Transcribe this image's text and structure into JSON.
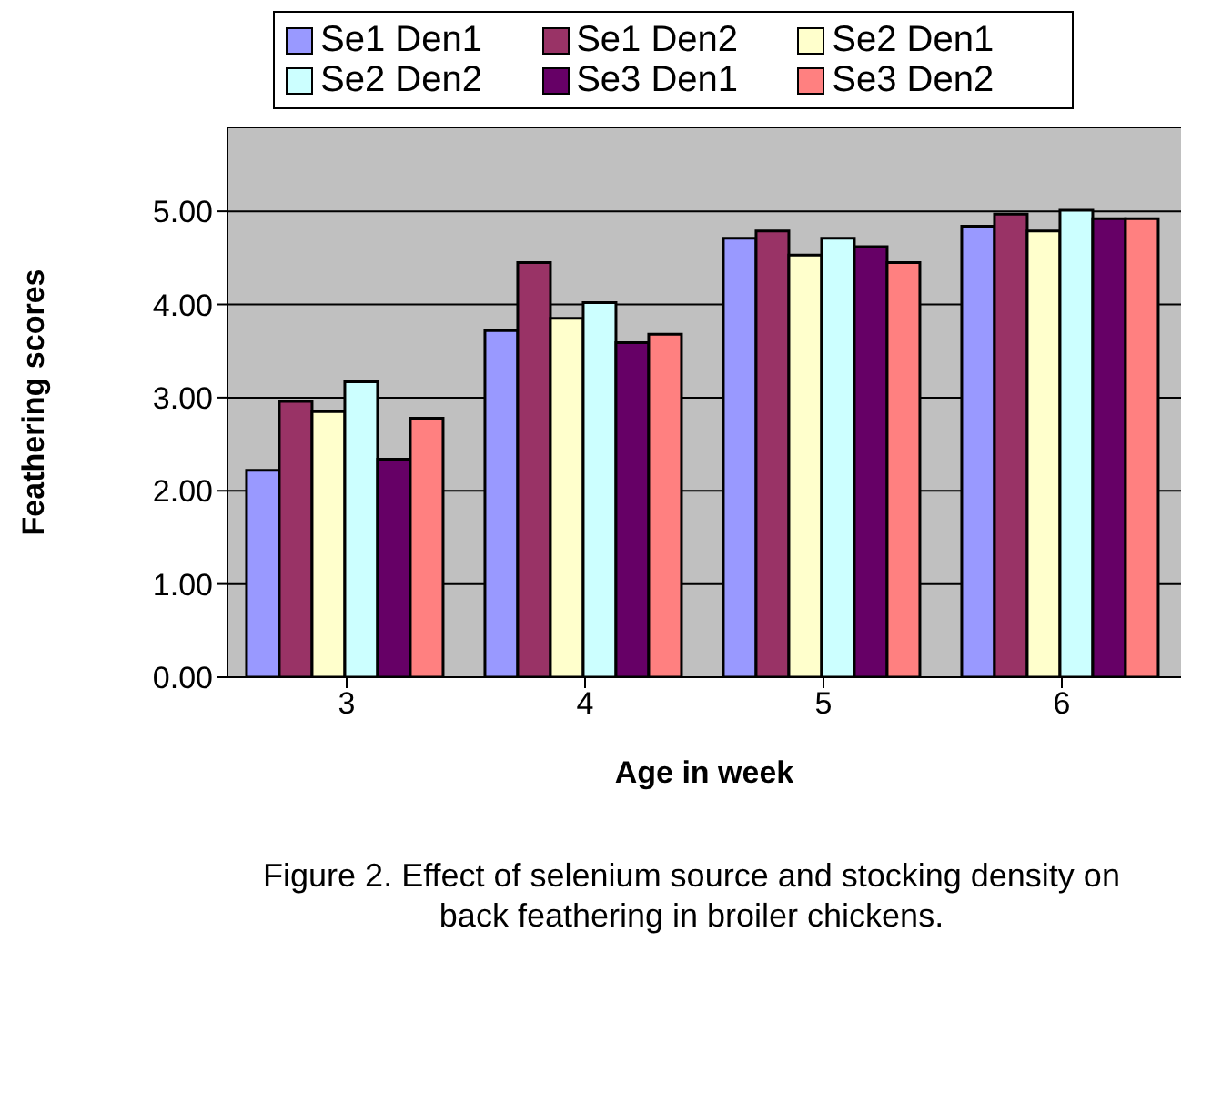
{
  "chart_data": {
    "type": "bar",
    "xlabel": "Age in week",
    "ylabel": "Feathering scores",
    "categories": [
      "3",
      "4",
      "5",
      "6"
    ],
    "series": [
      {
        "name": "Se1 Den1",
        "color": "#9999ff",
        "values": [
          2.22,
          3.72,
          4.71,
          4.84
        ]
      },
      {
        "name": "Se1 Den2",
        "color": "#993366",
        "values": [
          2.96,
          4.45,
          4.79,
          4.97
        ]
      },
      {
        "name": "Se2 Den1",
        "color": "#ffffcc",
        "values": [
          2.85,
          3.85,
          4.53,
          4.79
        ]
      },
      {
        "name": "Se2 Den2",
        "color": "#ccffff",
        "values": [
          3.17,
          4.02,
          4.71,
          5.01
        ]
      },
      {
        "name": "Se3 Den1",
        "color": "#660066",
        "values": [
          2.34,
          3.59,
          4.62,
          4.92
        ]
      },
      {
        "name": "Se3 Den2",
        "color": "#ff8080",
        "values": [
          2.78,
          3.68,
          4.45,
          4.92
        ]
      }
    ],
    "ylim": [
      0,
      5.9
    ],
    "yticks": [
      {
        "value": 0,
        "label": "0.00"
      },
      {
        "value": 1,
        "label": "1.00"
      },
      {
        "value": 2,
        "label": "2.00"
      },
      {
        "value": 3,
        "label": "3.00"
      },
      {
        "value": 4,
        "label": "4.00"
      },
      {
        "value": 5,
        "label": "5.00"
      }
    ],
    "grid": "y",
    "legend": "top",
    "annotations": [
      "Figure 2. Effect of selenium source and stocking density on back feathering in broiler chickens."
    ]
  }
}
